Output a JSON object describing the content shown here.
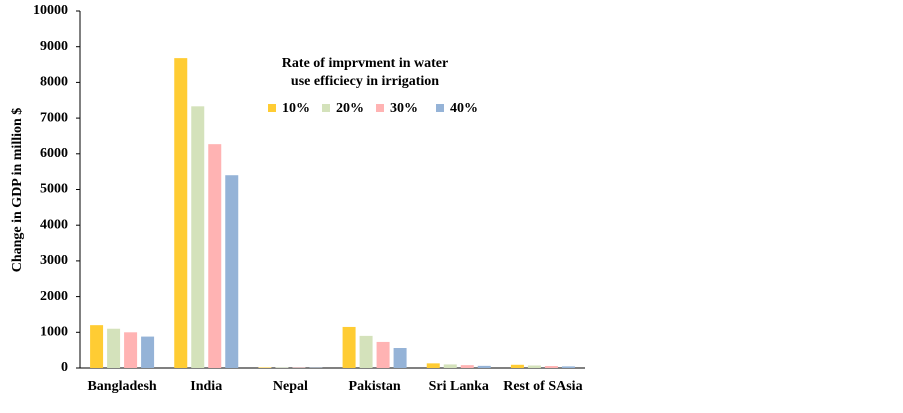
{
  "chart_data": {
    "type": "bar",
    "y_label": "Change in GDP in million $",
    "legend_title": [
      "Rate of imprvment in water",
      "use efficiecy in irrigation"
    ],
    "categories": [
      "Bangladesh",
      "India",
      "Nepal",
      "Pakistan",
      "Sri Lanka",
      "Rest of SAsia"
    ],
    "series": [
      {
        "name": "10%",
        "color": "#ffcc33",
        "values": [
          1200,
          8680,
          15,
          1150,
          130,
          90
        ]
      },
      {
        "name": "20%",
        "color": "#d4e2bb",
        "values": [
          1100,
          7330,
          12,
          900,
          100,
          70
        ]
      },
      {
        "name": "30%",
        "color": "#ffb3b3",
        "values": [
          1000,
          6270,
          10,
          730,
          80,
          55
        ]
      },
      {
        "name": "40%",
        "color": "#95b3d7",
        "values": [
          880,
          5400,
          8,
          560,
          60,
          45
        ]
      }
    ],
    "ylim": [
      0,
      10000
    ],
    "yticks": [
      0,
      1000,
      2000,
      3000,
      4000,
      5000,
      6000,
      7000,
      8000,
      9000,
      10000
    ],
    "grid": false
  }
}
